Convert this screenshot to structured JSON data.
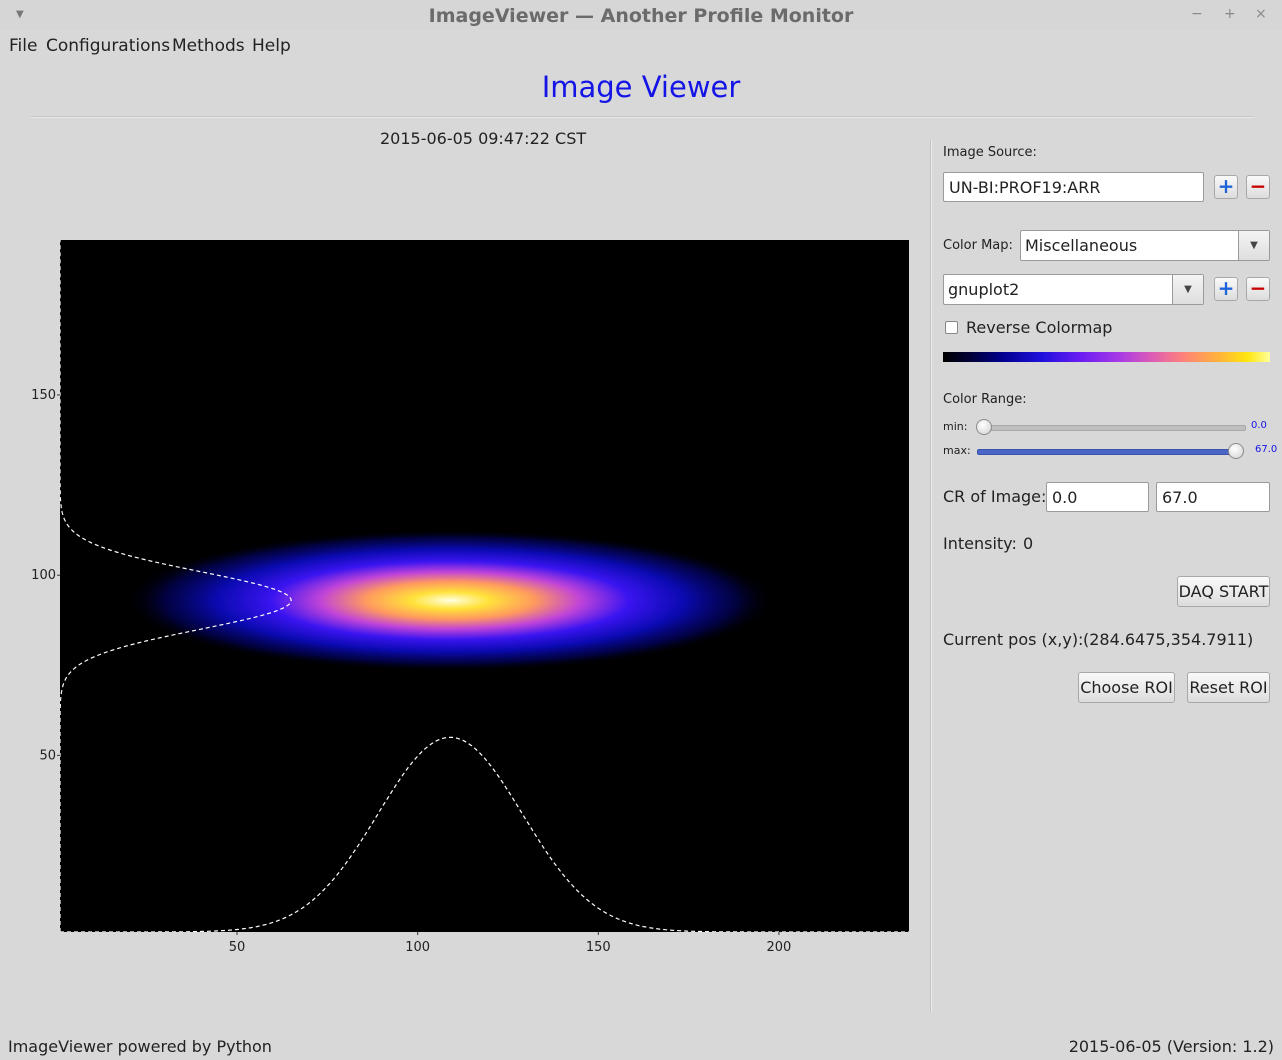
{
  "window": {
    "title": "ImageViewer — Another Profile Monitor",
    "controls": {
      "minimize": "−",
      "maximize": "+",
      "close": "×"
    }
  },
  "menu": {
    "file": "File",
    "configurations": "Configurations",
    "methods": "Methods",
    "help": "Help"
  },
  "app_title": "Image Viewer",
  "timestamp": "2015-06-05 09:47:22 CST",
  "panel": {
    "image_source_label": "Image Source:",
    "image_source_value": "UN-BI:PROF19:ARR",
    "color_map_label": "Color Map:",
    "color_map_category": "Miscellaneous",
    "color_map_name": "gnuplot2",
    "reverse_colormap_label": "Reverse Colormap",
    "reverse_colormap_checked": false,
    "color_range_label": "Color Range:",
    "min_label": "min:",
    "min_value": "0.0",
    "max_label": "max:",
    "max_value": "67.0",
    "cr_label": "CR of Image:",
    "cr_min": "0.0",
    "cr_max": "67.0",
    "intensity_label": "Intensity:",
    "intensity_value": "0",
    "daq_button": "DAQ START",
    "current_pos_label": "Current pos (x,y):",
    "current_pos_value": "(284.6475,354.7911)",
    "choose_roi_button": "Choose ROI",
    "reset_roi_button": "Reset ROI",
    "plus_symbol": "+",
    "minus_symbol": "−"
  },
  "chart_data": {
    "type": "heatmap",
    "colormap": "gnuplot2",
    "x_ticks": [
      50,
      100,
      150,
      200
    ],
    "y_ticks": [
      50,
      100,
      150
    ],
    "xlim": [
      1,
      236
    ],
    "ylim": [
      1,
      193
    ],
    "beam": {
      "center_x": 109,
      "center_y": 93,
      "sigma_x": 30,
      "sigma_y": 6,
      "peak": 67.0
    },
    "x_profile": {
      "x_center": 109,
      "sigma": 20,
      "baseline_y": 1,
      "peak_y": 55
    },
    "y_profile": {
      "y_center": 93,
      "sigma": 8,
      "baseline_x": 1,
      "peak_x": 65
    }
  },
  "status": {
    "left": "ImageViewer powered by Python",
    "right": "2015-06-05 (Version: 1.2)"
  }
}
